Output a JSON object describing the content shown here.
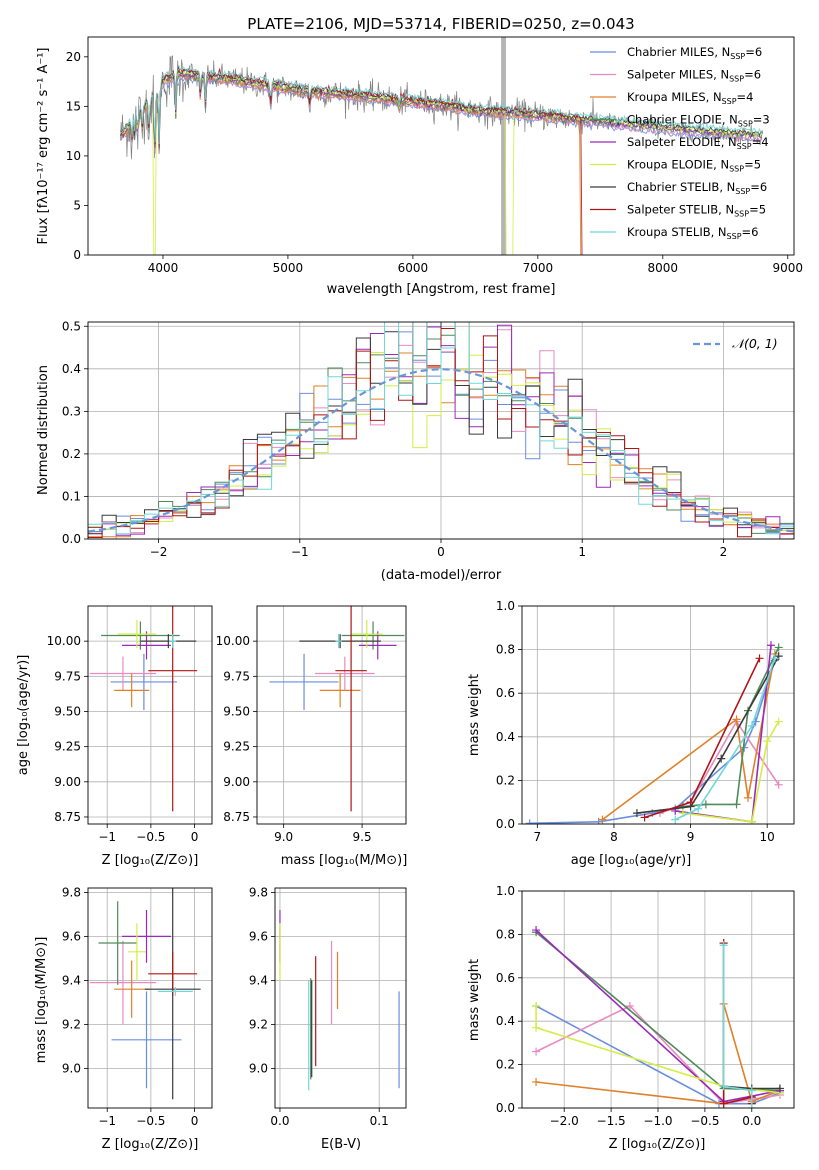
{
  "figure_title": "PLATE=2106, MJD=53714, FIBERID=0250, z=0.043",
  "colors": {
    "Chabrier MILES": "#6a8ee0",
    "Salpeter MILES": "#ea8ac0",
    "Kroupa MILES": "#e08028",
    "Chabrier ELODIE": "#4f8a5a",
    "Salpeter ELODIE": "#9a2ab8",
    "Kroupa ELODIE": "#d2ee45",
    "Chabrier STELIB": "#3a3a3a",
    "Salpeter STELIB": "#b01515",
    "Kroupa STELIB": "#6fd8d8",
    "data": "#808080",
    "gaussian": "#6a96d6"
  },
  "chart_data": [
    {
      "type": "line",
      "title": "PLATE=2106, MJD=53714, FIBERID=0250, z=0.043",
      "xlabel": "wavelength [Angstrom, rest frame]",
      "ylabel": "Flux [fλ10⁻¹⁷ erg cm⁻² s⁻¹ A⁻¹]",
      "xlim": [
        3400,
        9050
      ],
      "ylim": [
        0,
        22
      ],
      "xticks": [
        4000,
        5000,
        6000,
        7000,
        8000,
        9000
      ],
      "yticks": [
        0,
        5,
        10,
        15,
        20
      ],
      "grid": false,
      "legend_position": "top-right",
      "legend": [
        {
          "label": "Chabrier MILES, N",
          "n": "=6",
          "color": "#6a8ee0"
        },
        {
          "label": "Salpeter MILES, N",
          "n": "=6",
          "color": "#ea8ac0"
        },
        {
          "label": "Kroupa MILES, N",
          "n": "=4",
          "color": "#e08028"
        },
        {
          "label": "Chabrier ELODIE, N",
          "n": "=3",
          "color": "#4f8a5a"
        },
        {
          "label": "Salpeter ELODIE, N",
          "n": "=4",
          "color": "#9a2ab8"
        },
        {
          "label": "Kroupa ELODIE, N",
          "n": "=5",
          "color": "#d2ee45"
        },
        {
          "label": "Chabrier STELIB, N",
          "n": "=6",
          "color": "#3a3a3a"
        },
        {
          "label": "Salpeter STELIB, N",
          "n": "=5",
          "color": "#b01515"
        },
        {
          "label": "Kroupa STELIB, N",
          "n": "=6",
          "color": "#6fd8d8"
        }
      ],
      "legend_sub": "SSP",
      "continuum": {
        "wavelength": [
          3660,
          3700,
          3800,
          3900,
          3950,
          4000,
          4100,
          4200,
          4300,
          4400,
          4500,
          4700,
          4900,
          5100,
          5300,
          5500,
          5700,
          5900,
          6100,
          6300,
          6500,
          6700,
          6900,
          7100,
          7300,
          7500,
          7700,
          7900,
          8100,
          8300,
          8500,
          8800
        ],
        "flux": [
          12.0,
          12.6,
          14.2,
          15.5,
          16.2,
          17.5,
          18.2,
          18.3,
          18.0,
          17.9,
          17.8,
          17.4,
          17.0,
          16.6,
          16.4,
          16.1,
          15.9,
          15.6,
          15.3,
          15.0,
          14.6,
          14.4,
          14.2,
          14.0,
          13.7,
          13.5,
          13.2,
          13.0,
          12.7,
          12.5,
          12.3,
          12.0
        ]
      },
      "model_drops": [
        {
          "series": "Kroupa ELODIE",
          "wavelength_start": 3920,
          "wavelength_end": 3940
        },
        {
          "series": "Kroupa ELODIE",
          "wavelength_start": 6740,
          "wavelength_end": 6800
        },
        {
          "series": "Kroupa MILES",
          "wavelength_start": 7340,
          "wavelength_end": 7420
        },
        {
          "series": "Salpeter STELIB",
          "wavelength_start": 7350,
          "wavelength_end": 7420
        }
      ]
    },
    {
      "type": "step",
      "xlabel": "(data-model)/error",
      "ylabel": "Normed distribution",
      "xlim": [
        -2.5,
        2.5
      ],
      "ylim": [
        0,
        0.51
      ],
      "xticks": [
        -2,
        -1,
        0,
        1,
        2
      ],
      "yticks": [
        0.0,
        0.1,
        0.2,
        0.3,
        0.4,
        0.5
      ],
      "grid": true,
      "legend_position": "top-right",
      "legend_label": "𝒩(0, 1)",
      "bin_width": 0.1
    },
    {
      "type": "scatter-errorbar",
      "xlabel": "Z [log₁₀(Z/Z⊙)]",
      "ylabel": "age  [log₁₀(age/yr)]",
      "xlim": [
        -1.22,
        0.2
      ],
      "ylim": [
        8.7,
        10.25
      ],
      "xticks": [
        -1,
        -0.5,
        0
      ],
      "yticks": [
        8.75,
        9.0,
        9.25,
        9.5,
        9.75,
        10.0
      ],
      "grid": true,
      "points": [
        {
          "series": "Chabrier MILES",
          "x": -0.58,
          "xerr": 0.38,
          "y": 9.71,
          "yerr": 0.2
        },
        {
          "series": "Salpeter MILES",
          "x": -0.82,
          "xerr": 0.38,
          "y": 9.77,
          "yerr": 0.12
        },
        {
          "series": "Kroupa MILES",
          "x": -0.72,
          "xerr": 0.2,
          "y": 9.65,
          "yerr": 0.12
        },
        {
          "series": "Chabrier ELODIE",
          "x": -0.62,
          "xerr": 0.45,
          "y": 10.04,
          "yerr": 0.1
        },
        {
          "series": "Salpeter ELODIE",
          "x": -0.55,
          "xerr": 0.28,
          "y": 9.97,
          "yerr": 0.1
        },
        {
          "series": "Kroupa ELODIE",
          "x": -0.66,
          "xerr": 0.22,
          "y": 10.05,
          "yerr": 0.1
        },
        {
          "series": "Chabrier STELIB",
          "x": -0.3,
          "xerr": 0.32,
          "y": 10.0,
          "yerr": 0.05
        },
        {
          "series": "Salpeter STELIB",
          "x": -0.25,
          "xerr": 0.28,
          "y": 9.79,
          "yerr": 1.0
        },
        {
          "series": "Kroupa STELIB",
          "x": -0.25,
          "xerr": 0.04,
          "y": 10.0,
          "yerr": 0.05
        }
      ]
    },
    {
      "type": "scatter-errorbar",
      "xlabel": "mass [log₁₀(M/M⊙)]",
      "ylabel": "",
      "xlim": [
        8.83,
        9.78
      ],
      "ylim": [
        8.7,
        10.25
      ],
      "xticks": [
        9.0,
        9.5
      ],
      "yticks": [
        8.75,
        9.0,
        9.25,
        9.5,
        9.75,
        10.0
      ],
      "grid": true,
      "points": [
        {
          "series": "Chabrier MILES",
          "x": 9.13,
          "xerr": 0.22,
          "y": 9.71,
          "yerr": 0.2
        },
        {
          "series": "Salpeter MILES",
          "x": 9.39,
          "xerr": 0.19,
          "y": 9.77,
          "yerr": 0.12
        },
        {
          "series": "Kroupa MILES",
          "x": 9.36,
          "xerr": 0.13,
          "y": 9.65,
          "yerr": 0.12
        },
        {
          "series": "Chabrier ELODIE",
          "x": 9.57,
          "xerr": 0.2,
          "y": 10.04,
          "yerr": 0.1
        },
        {
          "series": "Salpeter ELODIE",
          "x": 9.6,
          "xerr": 0.12,
          "y": 9.97,
          "yerr": 0.1
        },
        {
          "series": "Kroupa ELODIE",
          "x": 9.53,
          "xerr": 0.1,
          "y": 10.05,
          "yerr": 0.1
        },
        {
          "series": "Chabrier STELIB",
          "x": 9.36,
          "xerr": 0.26,
          "y": 10.0,
          "yerr": 0.05
        },
        {
          "series": "Salpeter STELIB",
          "x": 9.43,
          "xerr": 0.1,
          "y": 9.79,
          "yerr": 1.0
        },
        {
          "series": "Kroupa STELIB",
          "x": 9.35,
          "xerr": 0.02,
          "y": 10.0,
          "yerr": 0.05
        }
      ]
    },
    {
      "type": "line",
      "xlabel": "age  [log₁₀(age/yr)]",
      "ylabel": "mass weight",
      "xlim": [
        6.8,
        10.35
      ],
      "ylim": [
        0,
        1.0
      ],
      "xticks": [
        7,
        8,
        9,
        10
      ],
      "yticks": [
        0.0,
        0.2,
        0.4,
        0.6,
        0.8,
        1.0
      ],
      "grid": true,
      "series": [
        {
          "name": "Chabrier MILES",
          "points": [
            [
              6.9,
              0.003
            ],
            [
              7.8,
              0.01
            ],
            [
              8.5,
              0.05
            ],
            [
              8.8,
              0.07
            ],
            [
              9.7,
              0.35
            ],
            [
              9.85,
              0.47
            ],
            [
              10.1,
              0.75
            ]
          ]
        },
        {
          "name": "Salpeter MILES",
          "points": [
            [
              8.6,
              0.05
            ],
            [
              9.0,
              0.1
            ],
            [
              9.6,
              0.47
            ],
            [
              10.15,
              0.18
            ]
          ]
        },
        {
          "name": "Kroupa MILES",
          "points": [
            [
              7.85,
              0.02
            ],
            [
              9.6,
              0.48
            ],
            [
              9.75,
              0.12
            ],
            [
              10.1,
              0.78
            ]
          ]
        },
        {
          "name": "Chabrier ELODIE",
          "points": [
            [
              8.9,
              0.08
            ],
            [
              9.2,
              0.09
            ],
            [
              9.6,
              0.09
            ],
            [
              9.75,
              0.52
            ],
            [
              10.15,
              0.81
            ]
          ]
        },
        {
          "name": "Salpeter ELODIE",
          "points": [
            [
              8.8,
              0.06
            ],
            [
              9.8,
              0.01
            ],
            [
              10.05,
              0.82
            ]
          ]
        },
        {
          "name": "Kroupa ELODIE",
          "points": [
            [
              8.9,
              0.05
            ],
            [
              9.8,
              0.01
            ],
            [
              10.0,
              0.38
            ],
            [
              10.15,
              0.47
            ]
          ]
        },
        {
          "name": "Chabrier STELIB",
          "points": [
            [
              8.3,
              0.05
            ],
            [
              9.0,
              0.08
            ],
            [
              9.4,
              0.3
            ],
            [
              10.15,
              0.77
            ]
          ]
        },
        {
          "name": "Salpeter STELIB",
          "points": [
            [
              8.4,
              0.03
            ],
            [
              9.0,
              0.1
            ],
            [
              9.9,
              0.76
            ]
          ]
        },
        {
          "name": "Kroupa STELIB",
          "points": [
            [
              8.8,
              0.02
            ],
            [
              9.1,
              0.07
            ],
            [
              9.8,
              0.45
            ],
            [
              10.1,
              0.76
            ]
          ]
        }
      ]
    },
    {
      "type": "scatter-errorbar",
      "xlabel": "Z [log₁₀(Z/Z⊙)]",
      "ylabel": "mass [log₁₀(M/M⊙)]",
      "xlim": [
        -1.22,
        0.2
      ],
      "ylim": [
        8.82,
        9.82
      ],
      "xticks": [
        -1,
        -0.5,
        0
      ],
      "yticks": [
        9.0,
        9.2,
        9.4,
        9.6,
        9.8
      ],
      "grid": true,
      "points": [
        {
          "series": "Chabrier MILES",
          "x": -0.55,
          "xerr": 0.4,
          "y": 9.13,
          "yerr": 0.22
        },
        {
          "series": "Salpeter MILES",
          "x": -0.82,
          "xerr": 0.38,
          "y": 9.39,
          "yerr": 0.19
        },
        {
          "series": "Kroupa MILES",
          "x": -0.72,
          "xerr": 0.2,
          "y": 9.36,
          "yerr": 0.13
        },
        {
          "series": "Chabrier ELODIE",
          "x": -0.88,
          "xerr": 0.22,
          "y": 9.57,
          "yerr": 0.19
        },
        {
          "series": "Salpeter ELODIE",
          "x": -0.55,
          "xerr": 0.28,
          "y": 9.6,
          "yerr": 0.12
        },
        {
          "series": "Kroupa ELODIE",
          "x": -0.66,
          "xerr": 0.1,
          "y": 9.53,
          "yerr": 0.13
        },
        {
          "series": "Chabrier STELIB",
          "x": -0.25,
          "xerr": 0.32,
          "y": 9.36,
          "yerr": 0.5
        },
        {
          "series": "Salpeter STELIB",
          "x": -0.25,
          "xerr": 0.28,
          "y": 9.43,
          "yerr": 0.1
        },
        {
          "series": "Kroupa STELIB",
          "x": -0.22,
          "xerr": 0.2,
          "y": 9.35,
          "yerr": 0.02
        }
      ]
    },
    {
      "type": "scatter-errorbar",
      "xlabel": "E(B-V)",
      "ylabel": "",
      "xlim": [
        -0.005,
        0.127
      ],
      "ylim": [
        8.82,
        9.82
      ],
      "xticks": [
        0.0,
        0.1
      ],
      "yticks": [
        9.0,
        9.2,
        9.4,
        9.6,
        9.8
      ],
      "grid": true,
      "points": [
        {
          "series": "Chabrier MILES",
          "x": 0.12,
          "y": 9.13,
          "yerr": 0.22
        },
        {
          "series": "Salpeter MILES",
          "x": 0.052,
          "y": 9.39,
          "yerr": 0.19
        },
        {
          "series": "Kroupa MILES",
          "x": 0.058,
          "y": 9.4,
          "yerr": 0.13
        },
        {
          "series": "Chabrier ELODIE",
          "x": 0.031,
          "y": 9.18,
          "yerr": 0.23
        },
        {
          "series": "Salpeter ELODIE",
          "x": 0.0,
          "y": 9.6,
          "yerr": 0.12
        },
        {
          "series": "Kroupa ELODIE",
          "x": 0.0,
          "y": 9.53,
          "yerr": 0.13
        },
        {
          "series": "Chabrier STELIB",
          "x": 0.032,
          "y": 9.18,
          "yerr": 0.22
        },
        {
          "series": "Salpeter STELIB",
          "x": 0.036,
          "y": 9.26,
          "yerr": 0.25
        },
        {
          "series": "Kroupa STELIB",
          "x": 0.029,
          "y": 9.15,
          "yerr": 0.25
        }
      ]
    },
    {
      "type": "line",
      "xlabel": "Z [log₁₀(Z/Z⊙)]",
      "ylabel": "mass weight",
      "xlim": [
        -2.45,
        0.45
      ],
      "ylim": [
        0,
        1.0
      ],
      "xticks": [
        -2.0,
        -1.5,
        -1.0,
        -0.5,
        0.0
      ],
      "yticks": [
        0.0,
        0.2,
        0.4,
        0.6,
        0.8,
        1.0
      ],
      "grid": true,
      "series": [
        {
          "name": "Chabrier MILES",
          "points": [
            [
              -2.3,
              0.47
            ],
            [
              -0.35,
              0.02
            ],
            [
              0.0,
              0.02
            ],
            [
              0.3,
              0.07
            ]
          ]
        },
        {
          "name": "Salpeter MILES",
          "points": [
            [
              -2.3,
              0.26
            ],
            [
              -1.3,
              0.47
            ],
            [
              -0.3,
              0.02
            ],
            [
              0.3,
              0.06
            ]
          ]
        },
        {
          "name": "Kroupa MILES",
          "points": [
            [
              -2.3,
              0.12
            ],
            [
              -0.3,
              0.02
            ],
            [
              -0.3,
              0.48
            ],
            [
              0.0,
              0.03
            ],
            [
              0.3,
              0.08
            ]
          ]
        },
        {
          "name": "Chabrier ELODIE",
          "points": [
            [
              -2.3,
              0.81
            ],
            [
              -0.3,
              0.09
            ],
            [
              0.3,
              0.08
            ]
          ]
        },
        {
          "name": "Salpeter ELODIE",
          "points": [
            [
              -2.3,
              0.82
            ],
            [
              -0.3,
              0.03
            ],
            [
              0.3,
              0.08
            ]
          ]
        },
        {
          "name": "Kroupa ELODIE",
          "points": [
            [
              -2.3,
              0.47
            ],
            [
              -2.3,
              0.37
            ],
            [
              -0.3,
              0.1
            ],
            [
              0.3,
              0.07
            ]
          ]
        },
        {
          "name": "Chabrier STELIB",
          "points": [
            [
              -0.3,
              0.76
            ],
            [
              -0.3,
              0.1
            ],
            [
              0.0,
              0.09
            ],
            [
              0.3,
              0.09
            ]
          ]
        },
        {
          "name": "Salpeter STELIB",
          "points": [
            [
              -0.3,
              0.76
            ],
            [
              -0.3,
              0.02
            ],
            [
              0.0,
              0.05
            ],
            [
              0.0,
              0.02
            ]
          ]
        },
        {
          "name": "Kroupa STELIB",
          "points": [
            [
              -0.3,
              0.75
            ],
            [
              -0.3,
              0.1
            ],
            [
              0.0,
              0.08
            ],
            [
              0.0,
              0.0
            ]
          ]
        }
      ]
    }
  ]
}
